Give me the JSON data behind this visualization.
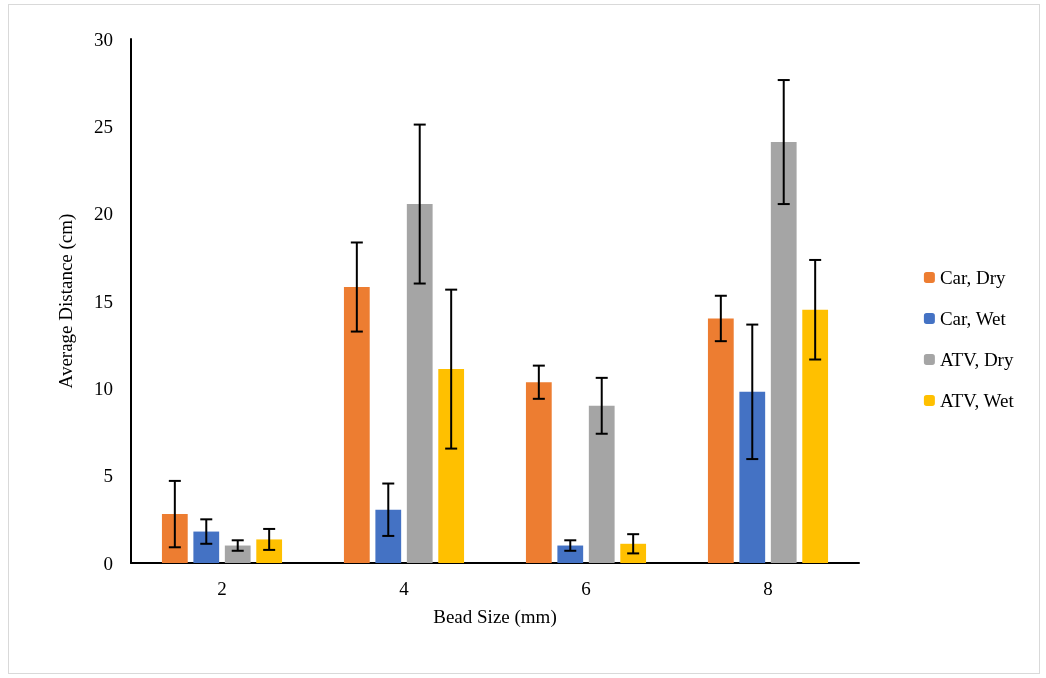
{
  "chart_data": {
    "type": "bar",
    "xlabel": "Bead Size (mm)",
    "ylabel": "Average Distance (cm)",
    "categories": [
      "2",
      "4",
      "6",
      "8"
    ],
    "series": [
      {
        "name": "Car, Dry",
        "color": "#ed7d31",
        "values": [
          2.8,
          15.8,
          10.35,
          14.0
        ],
        "errors": [
          1.9,
          2.55,
          0.95,
          1.3
        ]
      },
      {
        "name": "Car, Wet",
        "color": "#4472c4",
        "values": [
          1.8,
          3.05,
          1.0,
          9.8
        ],
        "errors": [
          0.7,
          1.5,
          0.3,
          3.85
        ]
      },
      {
        "name": "ATV, Dry",
        "color": "#a5a5a5",
        "values": [
          1.0,
          20.55,
          9.0,
          24.1
        ],
        "errors": [
          0.3,
          4.55,
          1.6,
          3.55
        ]
      },
      {
        "name": "ATV, Wet",
        "color": "#ffc000",
        "values": [
          1.35,
          11.1,
          1.1,
          14.5
        ],
        "errors": [
          0.6,
          4.55,
          0.55,
          2.85
        ]
      }
    ],
    "ylim": [
      0,
      30
    ],
    "yticks": [
      0,
      5,
      10,
      15,
      20,
      25,
      30
    ],
    "grid": false,
    "legend": "right"
  }
}
